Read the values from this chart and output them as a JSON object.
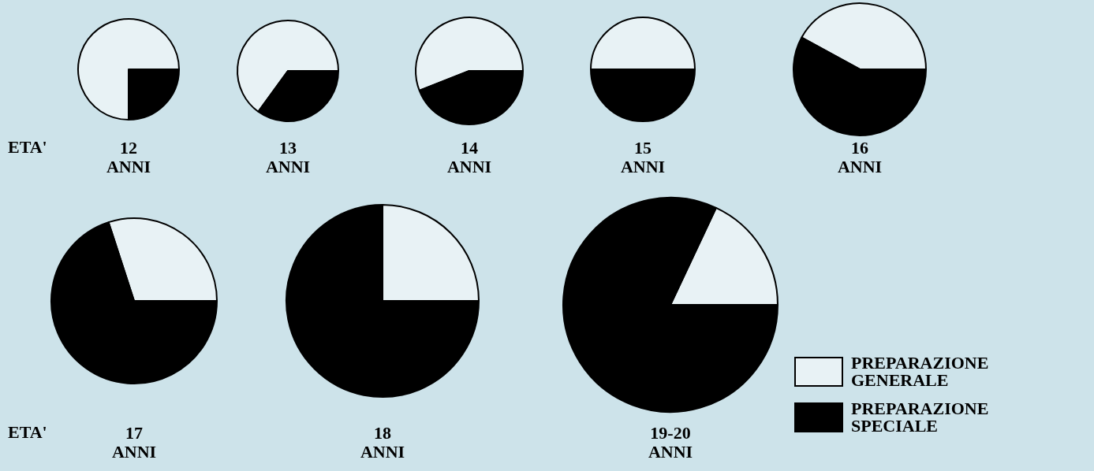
{
  "chart_data": [
    {
      "type": "pie",
      "title": "12 ANNI",
      "annotations": [
        "ETA'"
      ],
      "categories": [
        null,
        null
      ],
      "values": [
        75,
        25
      ],
      "colors": [
        "#e8f2f5",
        "#000000"
      ],
      "legend": false
    },
    {
      "type": "pie",
      "title": "13 ANNI",
      "categories": [
        null,
        null
      ],
      "values": [
        65,
        35
      ],
      "colors": [
        "#e8f2f5",
        "#000000"
      ],
      "legend": false
    },
    {
      "type": "pie",
      "title": "14 ANNI",
      "categories": [
        null,
        null
      ],
      "values": [
        56,
        44
      ],
      "colors": [
        "#e8f2f5",
        "#000000"
      ],
      "legend": false
    },
    {
      "type": "pie",
      "title": "15 ANNI",
      "categories": [
        null,
        null
      ],
      "values": [
        50,
        50
      ],
      "colors": [
        "#e8f2f5",
        "#000000"
      ],
      "legend": false
    },
    {
      "type": "pie",
      "title": "16 ANNI",
      "categories": [
        null,
        null
      ],
      "values": [
        42,
        58
      ],
      "colors": [
        "#e8f2f5",
        "#000000"
      ],
      "legend": false
    },
    {
      "type": "pie",
      "title": "17 ANNI",
      "annotations": [
        "ETA'"
      ],
      "categories": [
        null,
        null
      ],
      "values": [
        30,
        70
      ],
      "colors": [
        "#e8f2f5",
        "#000000"
      ],
      "legend": false
    },
    {
      "type": "pie",
      "title": "18 ANNI",
      "categories": [
        null,
        null
      ],
      "values": [
        25,
        75
      ],
      "colors": [
        "#e8f2f5",
        "#000000"
      ],
      "legend": false
    },
    {
      "type": "pie",
      "title": "19-20 ANNI",
      "categories": [
        "PREPARAZIONE GENERALE",
        "PREPARAZIONE SPECIALE"
      ],
      "values": [
        18,
        82
      ],
      "colors": [
        "#e8f2f5",
        "#000000"
      ],
      "legend": "right"
    }
  ]
}
